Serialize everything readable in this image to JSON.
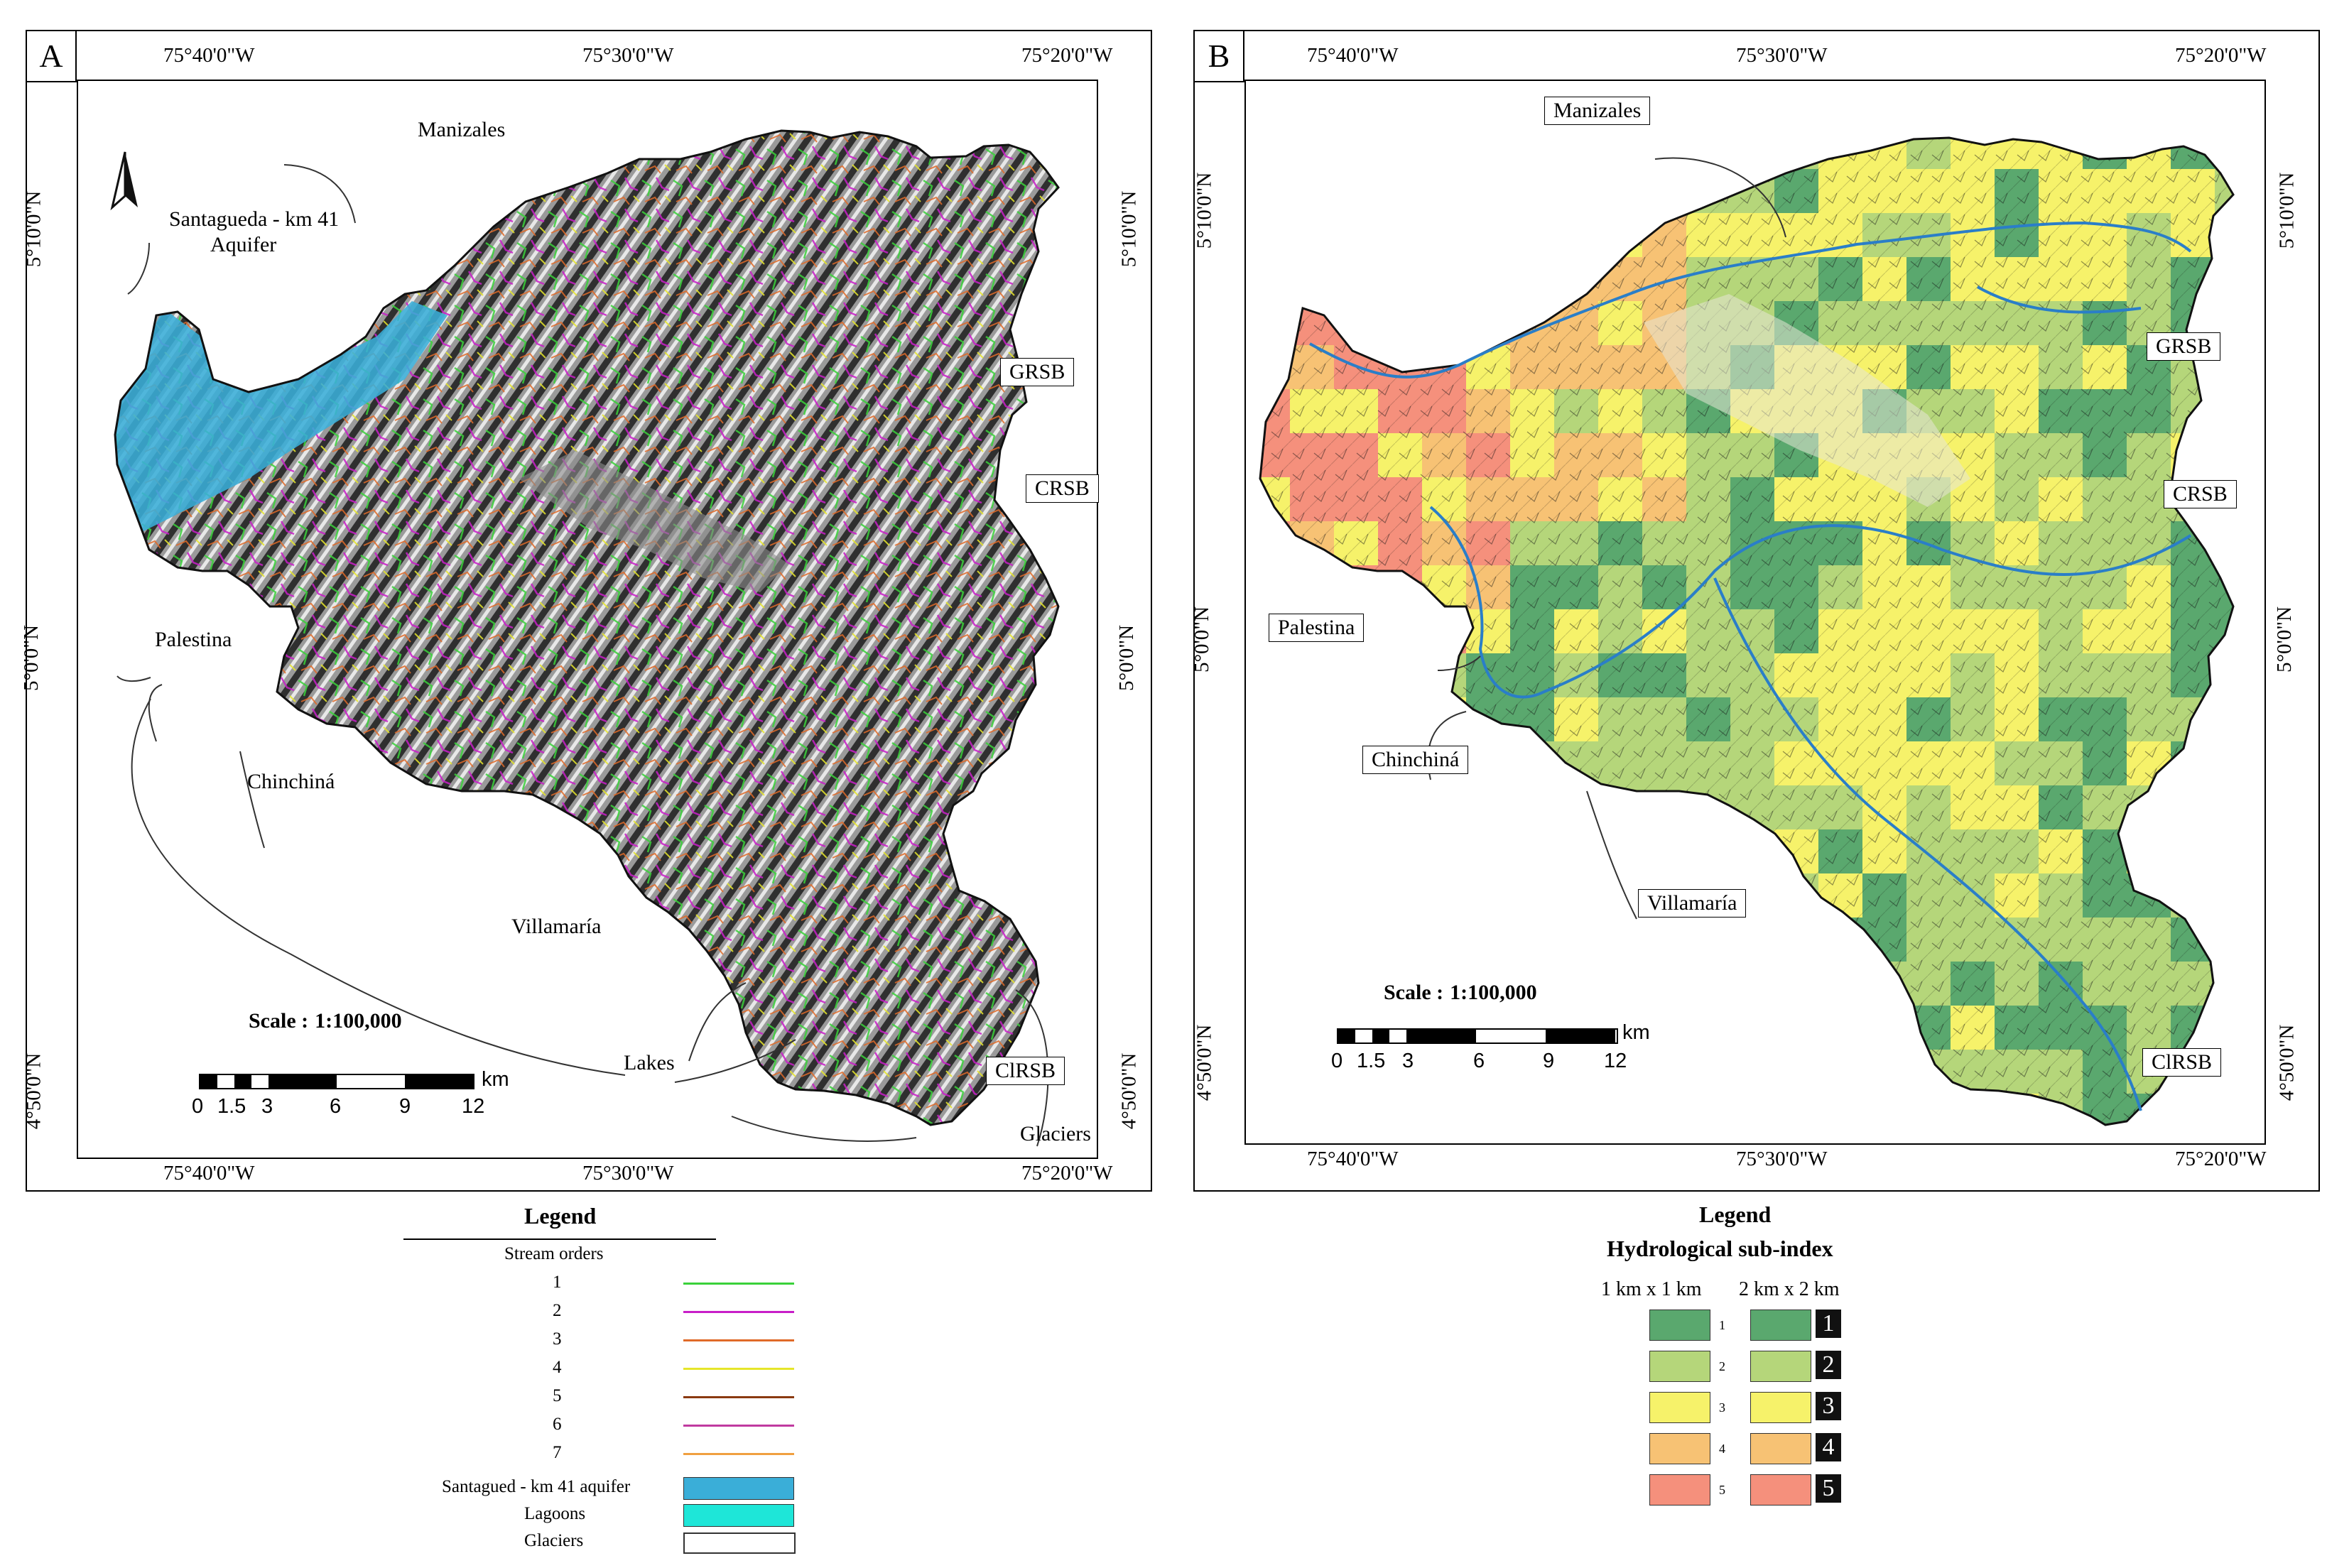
{
  "panelA": {
    "letter": "A",
    "top_coords": [
      "75°40'0\"W",
      "75°30'0\"W",
      "75°20'0\"W"
    ],
    "bottom_coords": [
      "75°40'0\"W",
      "75°30'0\"W",
      "75°20'0\"W"
    ],
    "left_coords": [
      "5°10'0\"N",
      "5°0'0\"N",
      "4°50'0\"N"
    ],
    "right_coords": [
      "5°10'0\"N",
      "5°0'0\"N",
      "4°50'0\"N"
    ],
    "north_label": "N",
    "places": {
      "manizales": "Manizales",
      "santagueda_line1": "Santagueda - km 41",
      "santagueda_line2": "Aquifer",
      "grsb": "GRSB",
      "crsb": "CRSB",
      "palestina": "Palestina",
      "chinchina": "Chinchiná",
      "villamaria": "Villamaría",
      "lakes": "Lakes",
      "clrsb": "ClRSB",
      "glaciers": "Glaciers"
    },
    "scale_label": "Scale :",
    "scale_value": "1:100,000",
    "scale_numbers": [
      "0",
      "1.5",
      "3",
      "6",
      "9",
      "12"
    ],
    "scale_unit": "km",
    "legend": {
      "title": "Legend",
      "subtitle": "Stream orders",
      "orders": [
        {
          "label": "1",
          "color": "#3ad13a"
        },
        {
          "label": "2",
          "color": "#c81ec8"
        },
        {
          "label": "3",
          "color": "#e06a28"
        },
        {
          "label": "4",
          "color": "#e6e62a"
        },
        {
          "label": "5",
          "color": "#8a3a10"
        },
        {
          "label": "6",
          "color": "#c03aa0"
        },
        {
          "label": "7",
          "color": "#f0a040"
        }
      ],
      "aquifer": {
        "label": "Santagued - km 41 aquifer",
        "color": "#3aaed8"
      },
      "lagoons": {
        "label": "Lagoons",
        "color": "#1ee6d8"
      },
      "glaciers": {
        "label": "Glaciers",
        "color": "#ffffff"
      }
    }
  },
  "panelB": {
    "letter": "B",
    "top_coords": [
      "75°40'0\"W",
      "75°30'0\"W",
      "75°20'0\"W"
    ],
    "bottom_coords": [
      "75°40'0\"W",
      "75°30'0\"W",
      "75°20'0\"W"
    ],
    "left_coords": [
      "5°10'0\"N",
      "5°0'0\"N",
      "4°50'0\"N"
    ],
    "right_coords": [
      "5°10'0\"N",
      "5°0'0\"N",
      "4°50'0\"N"
    ],
    "places": {
      "manizales": "Manizales",
      "grsb": "GRSB",
      "crsb": "CRSB",
      "palestina": "Palestina",
      "chinchina": "Chinchiná",
      "villamaria": "Villamaría",
      "clrsb": "ClRSB"
    },
    "scale_label": "Scale :",
    "scale_value": "1:100,000",
    "scale_numbers": [
      "0",
      "1.5",
      "3",
      "6",
      "9",
      "12"
    ],
    "scale_unit": "km",
    "legend": {
      "title": "Legend",
      "subtitle": "Hydrological sub-index",
      "col1": "1 km x 1 km",
      "col2": "2 km x 2 km",
      "classes": [
        {
          "label": "1",
          "color": "#5aa86e"
        },
        {
          "label": "2",
          "color": "#b5d67a"
        },
        {
          "label": "3",
          "color": "#f6f26a"
        },
        {
          "label": "4",
          "color": "#f7c274"
        },
        {
          "label": "5",
          "color": "#f5907c"
        }
      ]
    }
  }
}
